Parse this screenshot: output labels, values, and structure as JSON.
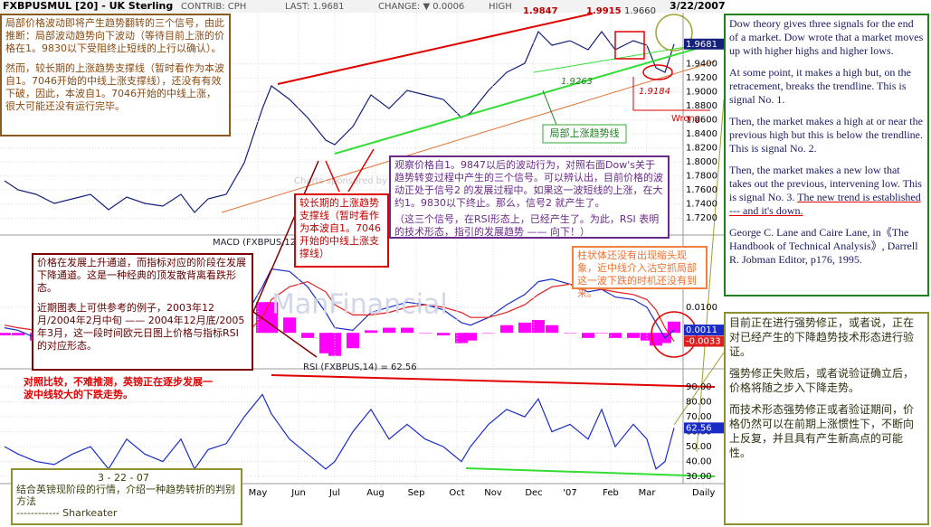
{
  "header": {
    "symbol": "FXBPUSMUL [20] - UK Sterling",
    "contrib": "CONTRIB: CPH",
    "last": "LAST: 1.9681",
    "change": "CHANGE: ▼ 0.0006",
    "high": "HIGH",
    "date": "3/22/2007"
  },
  "watermark": {
    "sponsor": "Charts sponsored by",
    "brand": "ManFinancial"
  },
  "chart_labels": {
    "peak1": "1.9847",
    "peak2": "1.9915",
    "peak3": "1.9660",
    "low1": "1.9263",
    "low2": "1.9184",
    "wrong": "Wrong",
    "local_trend": "局部上涨趋势线",
    "x_label": "Daily"
  },
  "chart_data": [
    {
      "type": "line",
      "x": [
        0,
        3,
        7,
        11,
        15,
        19,
        23,
        27,
        31,
        35,
        39,
        42,
        45,
        49,
        53,
        57,
        59,
        63,
        67,
        71,
        73,
        77,
        81,
        85,
        89,
        93,
        97,
        101,
        103,
        107,
        111,
        115,
        118,
        121,
        125,
        129,
        132,
        135,
        139,
        142,
        144,
        146,
        148
      ],
      "xlim": [
        -1,
        150
      ],
      "ylim": [
        1.71,
        2.0
      ],
      "yticks": [
        {
          "value": 1.72,
          "label": "1.7200"
        },
        {
          "value": 1.74,
          "label": "1.7400"
        },
        {
          "value": 1.76,
          "label": "1.7600"
        },
        {
          "value": 1.78,
          "label": "1.7800"
        },
        {
          "value": 1.8,
          "label": "1.8000"
        },
        {
          "value": 1.82,
          "label": "1.8200"
        },
        {
          "value": 1.84,
          "label": "1.8400"
        },
        {
          "value": 1.86,
          "label": "1.8600"
        },
        {
          "value": 1.88,
          "label": "1.8800"
        },
        {
          "value": 1.9,
          "label": "1.9000"
        },
        {
          "value": 1.92,
          "label": "1.9200"
        },
        {
          "value": 1.94,
          "label": "1.9400"
        }
      ],
      "grid": true,
      "series": [
        {
          "color": "#14207a",
          "current_value_box": true,
          "values": [
            1.7731,
            1.7603,
            1.7538,
            1.7409,
            1.7474,
            1.7538,
            1.7319,
            1.75,
            1.7409,
            1.7371,
            1.7538,
            1.728,
            1.7474,
            1.7538,
            1.7989,
            1.8762,
            1.9085,
            1.8891,
            1.8633,
            1.8311,
            1.8247,
            1.8505,
            1.8956,
            1.8762,
            1.902,
            1.8956,
            1.8891,
            1.8633,
            1.8698,
            1.902,
            1.9278,
            1.9407,
            1.9858,
            1.9664,
            1.9729,
            1.96,
            1.9858,
            1.96,
            1.9729,
            1.9664,
            1.9342,
            1.9278,
            1.9681
          ]
        }
      ]
    },
    {
      "type": "line",
      "title": "MACD (FXBPUS,12",
      "x": [
        0,
        3,
        7,
        11,
        15,
        19,
        23,
        27,
        31,
        35,
        39,
        42,
        45,
        49,
        53,
        57,
        59,
        63,
        67,
        71,
        73,
        77,
        81,
        85,
        89,
        93,
        97,
        101,
        103,
        107,
        111,
        115,
        118,
        121,
        125,
        129,
        132,
        135,
        139,
        142,
        144,
        146,
        148
      ],
      "xlim": [
        -1,
        150
      ],
      "ylim": [
        -0.013,
        0.034
      ],
      "yticks": [
        {
          "value": 0.01,
          "label": "0.0100"
        }
      ],
      "grid": true,
      "series": [
        {
          "type": "bar",
          "color": "#ff00ff",
          "values": [
            -0.001,
            -0.001,
            -0.003,
            -0.003,
            -0.002,
            0,
            -0.001,
            0.001,
            0,
            -0.001,
            0.001,
            -0.001,
            0,
            0.001,
            0.007,
            0.012,
            0.012,
            0.006,
            -0.002,
            -0.008,
            -0.009,
            -0.006,
            0.001,
            0.002,
            0.002,
            0,
            -0.001,
            -0.004,
            -0.003,
            0,
            0.003,
            0.004,
            0.005,
            0.003,
            0,
            -0.002,
            0,
            -0.002,
            -0.002,
            -0.003,
            -0.005,
            -0.004,
            0.0044
          ]
        },
        {
          "color": "#1a2cc8",
          "current_value_box": true,
          "values": [
            0.002,
            0.001,
            -0.002,
            -0.004,
            -0.004,
            -0.003,
            -0.005,
            -0.003,
            -0.004,
            -0.005,
            -0.003,
            -0.005,
            -0.004,
            -0.003,
            0.006,
            0.018,
            0.025,
            0.024,
            0.018,
            0.008,
            0.002,
            0.001,
            0.008,
            0.01,
            0.012,
            0.011,
            0.009,
            0.004,
            0.003,
            0.006,
            0.011,
            0.015,
            0.02,
            0.021,
            0.019,
            0.016,
            0.017,
            0.014,
            0.013,
            0.01,
            0.004,
            -0.002,
            0.0011
          ]
        },
        {
          "color": "#e02020",
          "current_value_box": true,
          "values": [
            0.003,
            0.002,
            0.001,
            -0.001,
            -0.002,
            -0.003,
            -0.004,
            -0.004,
            -0.004,
            -0.004,
            -0.004,
            -0.004,
            -0.004,
            -0.004,
            -0.001,
            0.006,
            0.013,
            0.018,
            0.02,
            0.016,
            0.011,
            0.007,
            0.007,
            0.008,
            0.01,
            0.011,
            0.01,
            0.008,
            0.006,
            0.006,
            0.008,
            0.011,
            0.015,
            0.018,
            0.019,
            0.018,
            0.017,
            0.016,
            0.015,
            0.013,
            0.009,
            0.002,
            -0.0033
          ]
        }
      ]
    },
    {
      "type": "line",
      "title": "RSI (FXBPUS,14) = 62.56",
      "x": [
        0,
        3,
        7,
        11,
        15,
        19,
        23,
        27,
        31,
        35,
        39,
        42,
        45,
        49,
        53,
        57,
        59,
        63,
        67,
        71,
        73,
        77,
        81,
        85,
        89,
        93,
        97,
        101,
        103,
        107,
        111,
        115,
        118,
        121,
        125,
        129,
        132,
        135,
        139,
        142,
        144,
        146,
        148
      ],
      "xlim": [
        -1,
        150
      ],
      "ylim": [
        27,
        101
      ],
      "yticks": [
        {
          "value": 30,
          "label": "30.00"
        },
        {
          "value": 40,
          "label": "40.00"
        },
        {
          "value": 50,
          "label": "50.00"
        },
        {
          "value": 60,
          "label": "60.00"
        },
        {
          "value": 70,
          "label": "70.00"
        },
        {
          "value": 80,
          "label": "80.00"
        },
        {
          "value": 90,
          "label": "90.00"
        }
      ],
      "grid": true,
      "xticks": [
        {
          "value": 56,
          "label": "May"
        },
        {
          "value": 65,
          "label": "Jun"
        },
        {
          "value": 73,
          "label": "Jul"
        },
        {
          "value": 82,
          "label": "Aug"
        },
        {
          "value": 91,
          "label": "Sep"
        },
        {
          "value": 100,
          "label": "Oct"
        },
        {
          "value": 108,
          "label": "Nov"
        },
        {
          "value": 117,
          "label": "Dec"
        },
        {
          "value": 125,
          "label": "'07"
        },
        {
          "value": 134,
          "label": "Feb"
        },
        {
          "value": 142,
          "label": "Mar"
        }
      ],
      "series": [
        {
          "color": "#1a2cc8",
          "current_value_box": true,
          "values": [
            50,
            45,
            40,
            38,
            45,
            50,
            35,
            55,
            45,
            40,
            55,
            35,
            48,
            52,
            70,
            85,
            72,
            55,
            45,
            35,
            40,
            60,
            75,
            55,
            65,
            55,
            50,
            40,
            50,
            65,
            75,
            70,
            82,
            60,
            65,
            55,
            75,
            50,
            65,
            55,
            35,
            40,
            62.56
          ]
        }
      ]
    }
  ],
  "notes": {
    "top_left": [
      "局部价格波动即将产生趋势翻转的三个信号，由此推断：局部波动趋势向下波动（等待目前上涨的价格在1。9830以下受阻终止短线的上行以确认）。",
      "然而，较长期的上涨趋势支撑线（暂时看作为本波自1。7046开始的中线上涨支撑线），还没有有效下破，因此，本波自1。7046开始的中线上涨，很大可能还没有运行完毕。"
    ],
    "purple": [
      "观察价格自1。9847以后的波动行为，对照右面Dow's关于趋势转变过程中产生的三个信号。可以辨认出，目前价格的波动正处于信号2 的发展过程中。如果这一波短线的上涨，在大约1。9830以下终止。那么，信号2 就产生了。",
      "（这三个信号，在RSI形态上，已经产生了。为此，RSI 表明的技术形态，指引的发展趋势 —— 向下！）"
    ],
    "red": "较长期的上涨趋势支撑线（暂时看作为本波自1。7046开始的中线上涨支撑线）",
    "orange": "柱状体还没有出现缩头现象，近中线介入沽空抓局部这一波下跌的时机还没有到来。",
    "maroon": [
      "价格在发展上升通道，而指标对应的阶段在发展下降通道。这是一种经典的顶发散背离看跌形态。",
      "近期图表上可供参考的例子，2003年12月/2004年2月中旬 —— 2004年12月底/2005年3月，这一段时间欧元日图上价格与指标RSI的对应形态。"
    ],
    "conclusion": "对照比较，不难推测，英镑正在逐步发展一波中线较大的下跌走势。",
    "bottom_left": [
      "3 - 22 - 07",
      "结合英镑现阶段的行情，介绍一种趋势转折的判别方法",
      "------------ Sharkeater"
    ],
    "dow": [
      "Dow theory gives three signals for the end of a market. Dow wrote that a market moves up with higher highs and higher lows.",
      "At some point, it makes a high but, on the retracement, breaks the trendline. This is signal No. 1.",
      "Then, the market makes a high at or near the previous high but this is below the trendline. This is signal No. 2.",
      "Then, the market makes a new low that takes out the previous, intervening low. This is signal No. 3. ",
      "The new trend is established  --- and it's down.",
      "George C. Lane and Caire Lane, in《The Handbook of Technical Analysis》, Darrell R. Jobman Editor, p176, 1995."
    ],
    "right_bottom": [
      "目前正在进行强势修正，或者说，正在对已经产生的下降趋势技术形态进行验证。",
      "强势修正失败后，或者说验证确立后，价格将随之步入下降走势。",
      "而技术形态强势修正或者验证期间，价格仍然可以在前期上涨惯性下，不断向上反复，并且具有产生新高点的可能性。"
    ]
  }
}
